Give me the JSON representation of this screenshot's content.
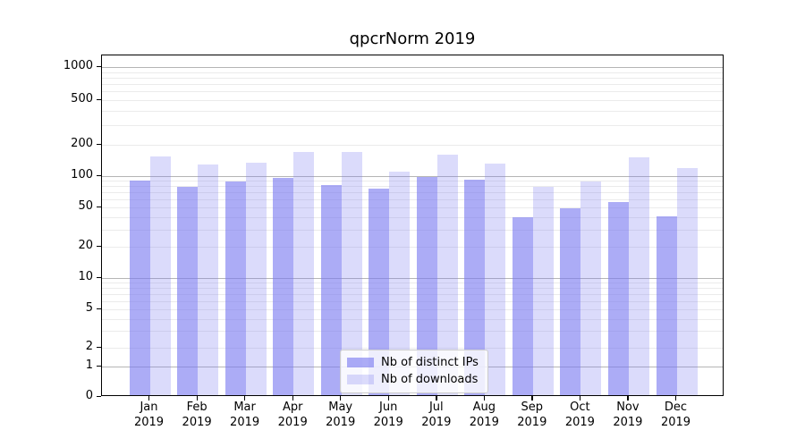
{
  "chart_data": {
    "type": "bar",
    "title": "qpcrNorm 2019",
    "xlabel": "",
    "ylabel": "",
    "y_scale": "symlog",
    "ylim": [
      0,
      1000
    ],
    "grid": true,
    "legend_position": "lower center",
    "categories": [
      "Jan",
      "Feb",
      "Mar",
      "Apr",
      "May",
      "Jun",
      "Jul",
      "Aug",
      "Sep",
      "Oct",
      "Nov",
      "Dec"
    ],
    "category_year": "2019",
    "y_ticks": [
      0,
      1,
      2,
      5,
      10,
      20,
      50,
      100,
      200,
      500,
      1000
    ],
    "series": [
      {
        "key": "ips",
        "name": "Nb of distinct IPs",
        "color": "rgba(121,121,241,0.62)",
        "values": [
          90,
          79,
          89,
          97,
          82,
          76,
          98,
          92,
          40,
          49,
          56,
          41
        ]
      },
      {
        "key": "downloads",
        "name": "Nb of downloads",
        "color": "rgba(121,121,241,0.27)",
        "values": [
          155,
          129,
          135,
          172,
          170,
          111,
          160,
          131,
          79,
          89,
          151,
          120
        ]
      }
    ],
    "colors": {
      "axis": "#000000",
      "grid_major": "#b5b5b5",
      "grid_minor": "#ebebeb",
      "legend_border": "#cccccc",
      "background": "#ffffff"
    }
  }
}
